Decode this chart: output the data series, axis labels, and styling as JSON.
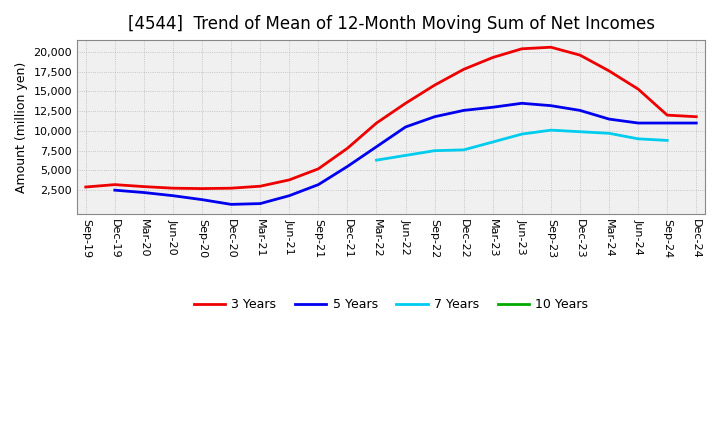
{
  "title": "[4544]  Trend of Mean of 12-Month Moving Sum of Net Incomes",
  "ylabel": "Amount (million yen)",
  "background_color": "#ffffff",
  "plot_bg_color": "#f0f0f0",
  "grid_color": "#aaaaaa",
  "x_labels": [
    "Sep-19",
    "Dec-19",
    "Mar-20",
    "Jun-20",
    "Sep-20",
    "Dec-20",
    "Mar-21",
    "Jun-21",
    "Sep-21",
    "Dec-21",
    "Mar-22",
    "Jun-22",
    "Sep-22",
    "Dec-22",
    "Mar-23",
    "Jun-23",
    "Sep-23",
    "Dec-23",
    "Mar-24",
    "Jun-24",
    "Sep-24",
    "Dec-24"
  ],
  "series": {
    "3 Years": {
      "color": "#ee0000",
      "data": [
        2900,
        3200,
        2950,
        2750,
        2700,
        2750,
        3000,
        3800,
        5200,
        7800,
        11000,
        13500,
        15800,
        17800,
        19300,
        20400,
        20600,
        19600,
        17600,
        15300,
        12000,
        11800
      ]
    },
    "5 Years": {
      "color": "#0000ee",
      "data": [
        null,
        2500,
        2200,
        1800,
        1300,
        700,
        800,
        1800,
        3200,
        5500,
        8000,
        10500,
        11800,
        12600,
        13000,
        13500,
        13200,
        12600,
        11500,
        11000,
        11000,
        11000
      ]
    },
    "7 Years": {
      "color": "#00ccee",
      "data": [
        null,
        null,
        null,
        null,
        null,
        null,
        null,
        null,
        null,
        null,
        6300,
        6900,
        7500,
        7600,
        8600,
        9600,
        10100,
        9900,
        9700,
        9000,
        8800,
        null
      ]
    },
    "10 Years": {
      "color": "#00aa00",
      "data": [
        null,
        null,
        null,
        null,
        null,
        null,
        null,
        null,
        null,
        null,
        null,
        null,
        null,
        null,
        null,
        null,
        null,
        null,
        null,
        null,
        null,
        null
      ]
    }
  },
  "ylim": [
    -500,
    21500
  ],
  "yticks": [
    2500,
    5000,
    7500,
    10000,
    12500,
    15000,
    17500,
    20000
  ],
  "title_fontsize": 12,
  "axis_fontsize": 9,
  "tick_fontsize": 8
}
